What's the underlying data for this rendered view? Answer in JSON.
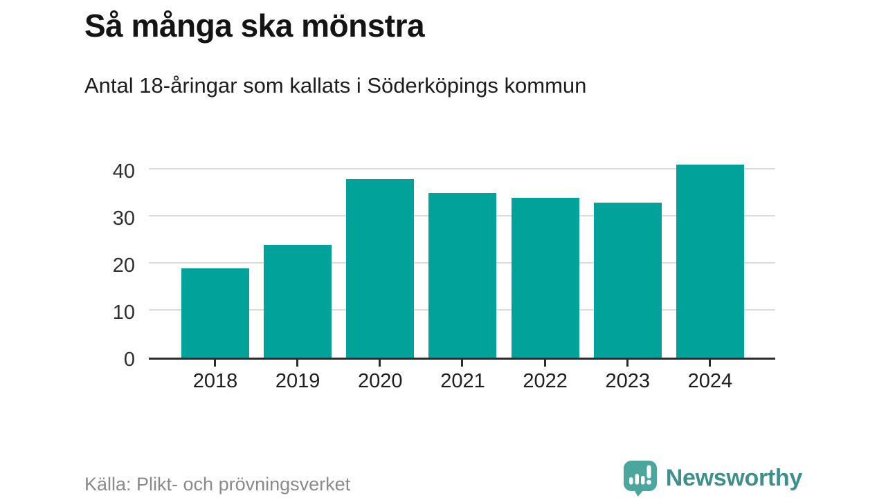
{
  "header": {
    "title": "Så många ska mönstra",
    "subtitle": "Antal 18-åringar som kallats i Söderköpings kommun"
  },
  "chart_data": {
    "type": "bar",
    "title": "Så många ska mönstra",
    "subtitle": "Antal 18-åringar som kallats i Söderköpings kommun",
    "categories": [
      "2018",
      "2019",
      "2020",
      "2021",
      "2022",
      "2023",
      "2024"
    ],
    "values": [
      19,
      24,
      38,
      35,
      34,
      33,
      41
    ],
    "xlabel": "",
    "ylabel": "",
    "yticks": [
      0,
      10,
      20,
      30,
      40
    ],
    "ylim": [
      0,
      42.6
    ],
    "grid": "horizontal-only",
    "legend": "none",
    "bar_color": "#00a29a",
    "axis_color": "#2b2b2b",
    "gridline_color": "#dcdcdc"
  },
  "footer": {
    "source": "Källa: Plikt- och prövningsverket",
    "brand": "Newsworthy",
    "brand_text_color": "#3f908c",
    "brand_icon_color": "#4ba69e"
  }
}
